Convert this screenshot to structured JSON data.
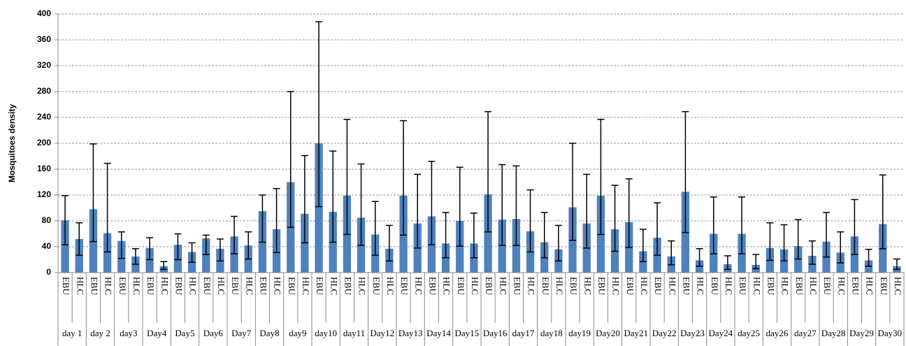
{
  "chart_data": {
    "type": "bar",
    "y_label": "Mosquitoes  density",
    "categories": [
      "EBU",
      "HLC",
      "EBU",
      "HLC",
      "EBU",
      "HLC",
      "EBU",
      "HLC",
      "EBU",
      "HLC",
      "EBU",
      "HLC",
      "EBU",
      "HLC",
      "EBU",
      "HLC",
      "EBU",
      "HLC",
      "EBU",
      "HLC",
      "EBU",
      "HLC",
      "EBU",
      "HLC",
      "EBU",
      "HLC",
      "EBU",
      "HLC",
      "EBU",
      "HLC",
      "EBU",
      "HLC",
      "EBU",
      "HLC",
      "EBU",
      "HLC",
      "EBU",
      "HLC",
      "EBU",
      "HLC",
      "EBU",
      "HLC",
      "EBU",
      "HLC",
      "EBU",
      "HLC",
      "EBU",
      "HLC",
      "EBU",
      "HLC",
      "EBU",
      "HLC",
      "EBU",
      "HLC",
      "EBU",
      "HLC",
      "EBU",
      "HLC",
      "EBU",
      "HLC"
    ],
    "groups": [
      "day 1",
      "day 2",
      "day3",
      "Day4",
      "Day5",
      "Day6",
      "Day7",
      "Day8",
      "day9",
      "day10",
      "day11",
      "Day12",
      "Day13",
      "Day14",
      "Day15",
      "Day16",
      "day17",
      "day18",
      "day19",
      "Day20",
      "Day21",
      "Day22",
      "Day23",
      "Day24",
      "day25",
      "day26",
      "day27",
      "Day28",
      "Day29",
      "Day30"
    ],
    "series": [
      {
        "color": "#4f81bd",
        "error_color": "#000000",
        "values": [
          81,
          52,
          98,
          61,
          49,
          25,
          38,
          10,
          43,
          32,
          53,
          37,
          56,
          42,
          95,
          67,
          140,
          91,
          200,
          94,
          119,
          85,
          59,
          37,
          119,
          76,
          87,
          45,
          80,
          45,
          121,
          82,
          83,
          64,
          47,
          36,
          101,
          76,
          119,
          67,
          78,
          33,
          54,
          25,
          125,
          19,
          60,
          13,
          60,
          12,
          38,
          36,
          41,
          26,
          48,
          31,
          56,
          19,
          75,
          10
        ],
        "errors_plus": [
          38,
          25,
          101,
          108,
          14,
          12,
          16,
          7,
          17,
          14,
          5,
          15,
          31,
          21,
          25,
          63,
          140,
          90,
          188,
          94,
          118,
          83,
          51,
          36,
          116,
          76,
          85,
          48,
          83,
          47,
          128,
          85,
          82,
          64,
          46,
          37,
          99,
          76,
          118,
          68,
          67,
          34,
          54,
          24,
          124,
          18,
          57,
          13,
          57,
          16,
          39,
          38,
          41,
          23,
          45,
          32,
          57,
          17,
          76,
          11
        ],
        "errors_minus": [
          38,
          25,
          50,
          29,
          27,
          12,
          18,
          5,
          23,
          16,
          25,
          19,
          27,
          21,
          48,
          36,
          70,
          45,
          98,
          47,
          60,
          43,
          32,
          19,
          61,
          38,
          44,
          22,
          39,
          22,
          58,
          40,
          41,
          32,
          24,
          18,
          51,
          38,
          60,
          34,
          39,
          16,
          27,
          13,
          63,
          9,
          31,
          8,
          31,
          6,
          19,
          18,
          20,
          13,
          24,
          16,
          28,
          9,
          38,
          5
        ]
      }
    ],
    "ylim": [
      0,
      400
    ],
    "yticks": [
      0,
      40,
      80,
      120,
      160,
      200,
      240,
      280,
      320,
      360,
      400
    ],
    "grid": true
  }
}
